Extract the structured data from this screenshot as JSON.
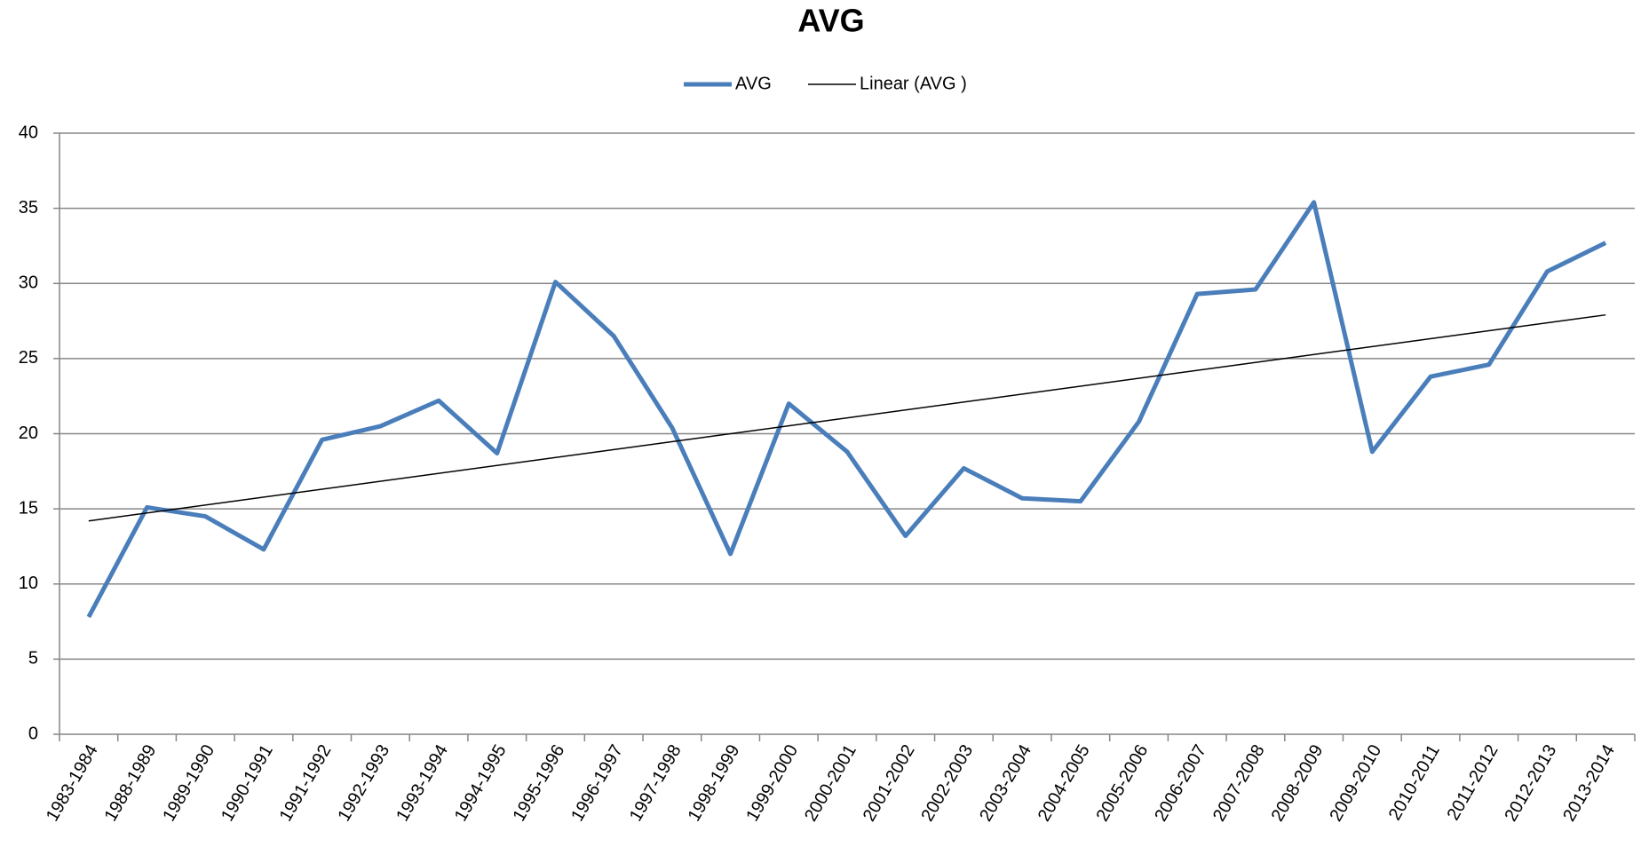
{
  "chart_data": {
    "type": "line",
    "title": "AVG",
    "categories": [
      "1983-1984",
      "1988-1989",
      "1989-1990",
      "1990-1991",
      "1991-1992",
      "1992-1993",
      "1993-1994",
      "1994-1995",
      "1995-1996",
      "1996-1997",
      "1997-1998",
      "1998-1999",
      "1999-2000",
      "2000-2001",
      "2001-2002",
      "2002-2003",
      "2003-2004",
      "2004-2005",
      "2005-2006",
      "2006-2007",
      "2007-2008",
      "2008-2009",
      "2009-2010",
      "2010-2011",
      "2011-2012",
      "2012-2013",
      "2013-2014"
    ],
    "series": [
      {
        "name": "AVG",
        "color": "#4a7ebb",
        "values": [
          7.8,
          15.1,
          14.5,
          12.3,
          19.6,
          20.5,
          22.2,
          18.7,
          30.1,
          26.5,
          20.4,
          12.0,
          22.0,
          18.8,
          13.2,
          17.7,
          15.7,
          15.5,
          20.8,
          29.3,
          29.6,
          35.4,
          18.8,
          23.8,
          24.6,
          30.8,
          32.7
        ]
      }
    ],
    "trendline": {
      "name": "Linear (AVG )",
      "color": "#000000",
      "type": "linear"
    },
    "ylim": [
      0,
      40
    ],
    "yticks": [
      0,
      5,
      10,
      15,
      20,
      25,
      30,
      35,
      40
    ],
    "grid": true,
    "legend": "top"
  }
}
